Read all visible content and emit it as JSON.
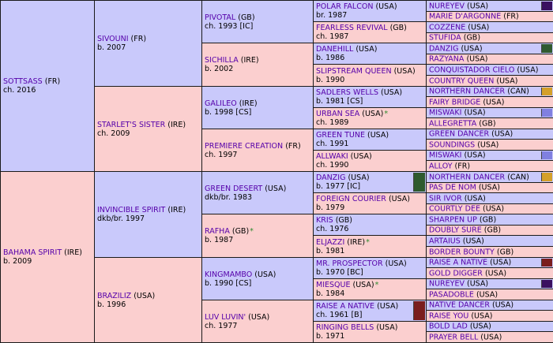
{
  "gen1": [
    {
      "name": "SOTTSASS",
      "country": "(FR)",
      "detail": "ch. 2016",
      "sex": "m"
    },
    {
      "name": "BAHAMA SPIRIT",
      "country": "(IRE)",
      "detail": "b. 2009",
      "sex": "f"
    }
  ],
  "gen2": [
    {
      "name": "SIVOUNI",
      "country": "(FR)",
      "detail": "b. 2007",
      "sex": "m"
    },
    {
      "name": "STARLET'S SISTER",
      "country": "(IRE)",
      "detail": "ch. 2009",
      "sex": "f"
    },
    {
      "name": "INVINCIBLE SPIRIT",
      "country": "(IRE)",
      "detail": "dkb/br. 1997",
      "sex": "m"
    },
    {
      "name": "BRAZILIZ",
      "country": "(USA)",
      "detail": "b. 1996",
      "sex": "f"
    }
  ],
  "gen3": [
    {
      "name": "PIVOTAL",
      "country": "(GB)",
      "detail": "ch. 1993 [IC]",
      "sex": "m"
    },
    {
      "name": "SICHILLA",
      "country": "(IRE)",
      "detail": "b. 2002",
      "sex": "f"
    },
    {
      "name": "GALILEO",
      "country": "(IRE)",
      "detail": "b. 1998 [CS]",
      "sex": "m"
    },
    {
      "name": "PREMIERE CREATION",
      "country": "(FR)",
      "detail": "ch. 1997",
      "sex": "f"
    },
    {
      "name": "GREEN DESERT",
      "country": "(USA)",
      "detail": "dkb/br. 1983",
      "sex": "m"
    },
    {
      "name": "RAFHA",
      "country": "(GB)",
      "detail": "b. 1987",
      "sex": "f",
      "star": "*"
    },
    {
      "name": "KINGMAMBO",
      "country": "(USA)",
      "detail": "b. 1990 [CS]",
      "sex": "m"
    },
    {
      "name": "LUV LUVIN'",
      "country": "(USA)",
      "detail": "ch. 1977",
      "sex": "f"
    }
  ],
  "gen4": [
    {
      "name": "POLAR FALCON",
      "country": "(USA)",
      "detail": "br. 1987",
      "sex": "m"
    },
    {
      "name": "FEARLESS REVIVAL",
      "country": "(GB)",
      "detail": "ch. 1987",
      "sex": "f"
    },
    {
      "name": "DANEHILL",
      "country": "(USA)",
      "detail": "b. 1986",
      "sex": "m"
    },
    {
      "name": "SLIPSTREAM QUEEN",
      "country": "(USA)",
      "detail": "b. 1990",
      "sex": "f"
    },
    {
      "name": "SADLERS WELLS",
      "country": "(USA)",
      "detail": "b. 1981 [CS]",
      "sex": "m"
    },
    {
      "name": "URBAN SEA",
      "country": "(USA)",
      "detail": "ch. 1989",
      "sex": "f",
      "star": "*"
    },
    {
      "name": "GREEN TUNE",
      "country": "(USA)",
      "detail": "ch. 1991",
      "sex": "m"
    },
    {
      "name": "ALLWAKI",
      "country": "(USA)",
      "detail": "ch. 1990",
      "sex": "f"
    },
    {
      "name": "DANZIG",
      "country": "(USA)",
      "detail": "b. 1977 [IC]",
      "sex": "m",
      "swatch": "#2f5a2f"
    },
    {
      "name": "FOREIGN COURIER",
      "country": "(USA)",
      "detail": "b. 1979",
      "sex": "f"
    },
    {
      "name": "KRIS",
      "country": "(GB)",
      "detail": "ch. 1976",
      "sex": "m"
    },
    {
      "name": "ELJAZZI",
      "country": "(IRE)",
      "detail": "b. 1981",
      "sex": "f",
      "star": "*"
    },
    {
      "name": "MR. PROSPECTOR",
      "country": "(USA)",
      "detail": "b. 1970 [BC]",
      "sex": "m"
    },
    {
      "name": "MIESQUE",
      "country": "(USA)",
      "detail": "b. 1984",
      "sex": "f",
      "star": "*"
    },
    {
      "name": "RAISE A NATIVE",
      "country": "(USA)",
      "detail": "ch. 1961 [B]",
      "sex": "m",
      "swatch": "#7a1e1e"
    },
    {
      "name": "RINGING BELLS",
      "country": "(USA)",
      "detail": "b. 1971",
      "sex": "f"
    }
  ],
  "gen5": [
    {
      "name": "NUREYEV",
      "country": "(USA)",
      "sex": "m",
      "swatch": "#3a1060"
    },
    {
      "name": "MARIE D'ARGONNE",
      "country": "(FR)",
      "sex": "f"
    },
    {
      "name": "COZZENE",
      "country": "(USA)",
      "sex": "m"
    },
    {
      "name": "STUFIDA",
      "country": "(GB)",
      "sex": "f"
    },
    {
      "name": "DANZIG",
      "country": "(USA)",
      "sex": "m",
      "swatch": "#2f5a2f"
    },
    {
      "name": "RAZYANA",
      "country": "(USA)",
      "sex": "f"
    },
    {
      "name": "CONQUISTADOR CIELO",
      "country": "(USA)",
      "sex": "m"
    },
    {
      "name": "COUNTRY QUEEN",
      "country": "(USA)",
      "sex": "f"
    },
    {
      "name": "NORTHERN DANCER",
      "country": "(CAN)",
      "sex": "m",
      "swatch": "#d4a02a"
    },
    {
      "name": "FAIRY BRIDGE",
      "country": "(USA)",
      "sex": "f"
    },
    {
      "name": "MISWAKI",
      "country": "(USA)",
      "sex": "m",
      "swatch": "#8080e0"
    },
    {
      "name": "ALLEGRETTA",
      "country": "(GB)",
      "sex": "f"
    },
    {
      "name": "GREEN DANCER",
      "country": "(USA)",
      "sex": "m"
    },
    {
      "name": "SOUNDINGS",
      "country": "(USA)",
      "sex": "f"
    },
    {
      "name": "MISWAKI",
      "country": "(USA)",
      "sex": "m",
      "swatch": "#8080e0"
    },
    {
      "name": "ALLOY",
      "country": "(FR)",
      "sex": "f"
    },
    {
      "name": "NORTHERN DANCER",
      "country": "(CAN)",
      "sex": "m",
      "swatch": "#d4a02a"
    },
    {
      "name": "PAS DE NOM",
      "country": "(USA)",
      "sex": "f"
    },
    {
      "name": "SIR IVOR",
      "country": "(USA)",
      "sex": "m"
    },
    {
      "name": "COURTLY DEE",
      "country": "(USA)",
      "sex": "f"
    },
    {
      "name": "SHARPEN UP",
      "country": "(GB)",
      "sex": "m"
    },
    {
      "name": "DOUBLY SURE",
      "country": "(GB)",
      "sex": "f"
    },
    {
      "name": "ARTAIUS",
      "country": "(USA)",
      "sex": "m"
    },
    {
      "name": "BORDER BOUNTY",
      "country": "(GB)",
      "sex": "f"
    },
    {
      "name": "RAISE A NATIVE",
      "country": "(USA)",
      "sex": "m",
      "swatch": "#7a1e1e"
    },
    {
      "name": "GOLD DIGGER",
      "country": "(USA)",
      "sex": "f"
    },
    {
      "name": "NUREYEV",
      "country": "(USA)",
      "sex": "m",
      "swatch": "#3a1060"
    },
    {
      "name": "PASADOBLE",
      "country": "(USA)",
      "sex": "f"
    },
    {
      "name": "NATIVE DANCER",
      "country": "(USA)",
      "sex": "m"
    },
    {
      "name": "RAISE YOU",
      "country": "(USA)",
      "sex": "f"
    },
    {
      "name": "BOLD LAD",
      "country": "(USA)",
      "sex": "m"
    },
    {
      "name": "PRAYER BELL",
      "country": "(USA)",
      "sex": "f"
    }
  ]
}
